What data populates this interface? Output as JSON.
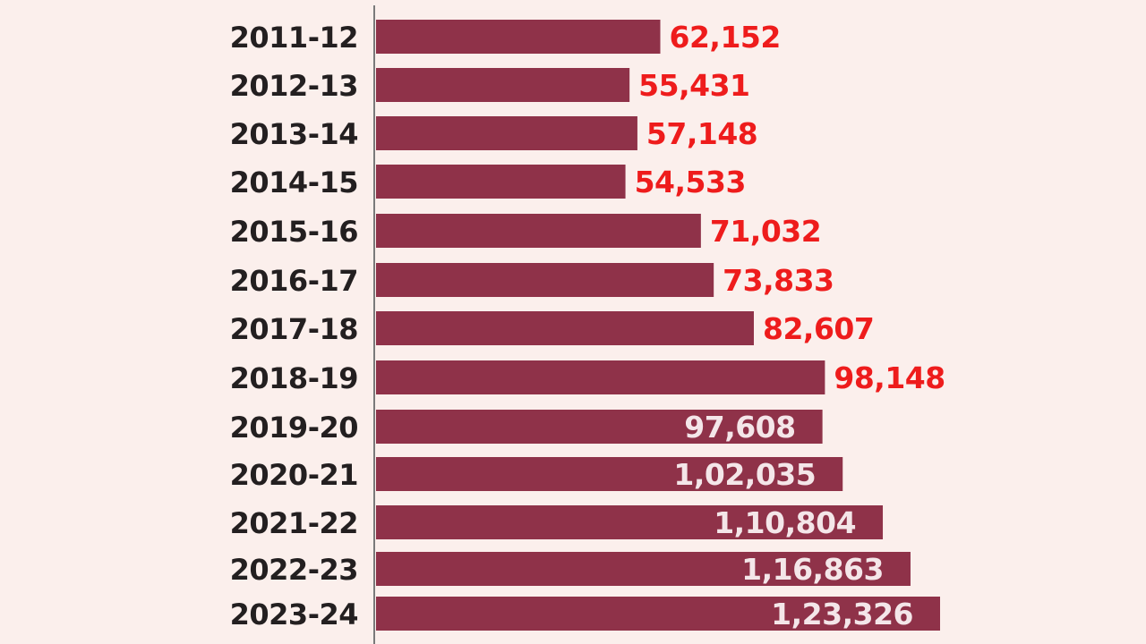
{
  "chart_data": {
    "type": "bar",
    "orientation": "horizontal",
    "categories": [
      "2011-12",
      "2012-13",
      "2013-14",
      "2014-15",
      "2015-16",
      "2016-17",
      "2017-18",
      "2018-19",
      "2019-20",
      "2020-21",
      "2021-22",
      "2022-23",
      "2023-24"
    ],
    "values": [
      62152,
      55431,
      57148,
      54533,
      71032,
      73833,
      82607,
      98148,
      97608,
      102035,
      110804,
      116863,
      123326
    ],
    "value_labels": [
      "62,152",
      "55,431",
      "57,148",
      "54,533",
      "71,032",
      "73,833",
      "82,607",
      "98,148",
      "97,608",
      "1,02,035",
      "1,10,804",
      "1,16,863",
      "1,23,326"
    ],
    "label_placement": [
      "outside",
      "outside",
      "outside",
      "outside",
      "outside",
      "outside",
      "outside",
      "outside",
      "inside",
      "inside",
      "inside",
      "inside",
      "inside"
    ],
    "title": "",
    "xlabel": "",
    "ylabel": "",
    "xlim": [
      0,
      123326
    ],
    "grid": false,
    "legend": "none"
  },
  "colors": {
    "background": "#fbefec",
    "bar": "#8f3249",
    "label_outside": "#ee1c1c",
    "label_inside": "#f4e6e9",
    "category_text": "#231f20",
    "axis": "#7a7a7a"
  }
}
